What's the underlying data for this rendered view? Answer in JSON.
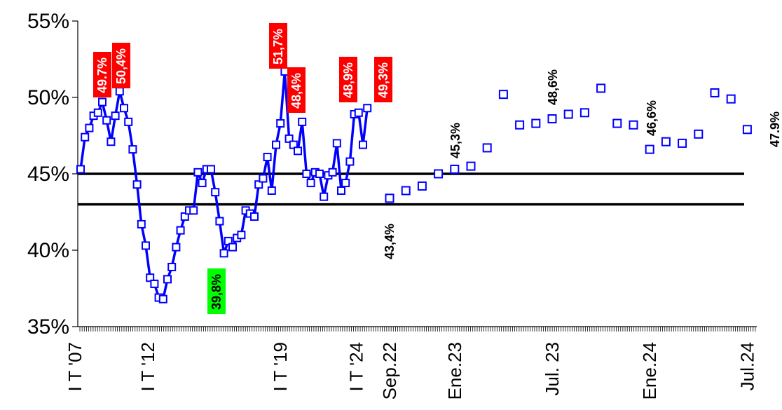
{
  "chart_data": {
    "type": "line",
    "y_ticks": [
      "35%",
      "40%",
      "45%",
      "50%",
      "55%"
    ],
    "ylim": [
      35,
      55
    ],
    "reference_lines": [
      45,
      43
    ],
    "x_tick_labels": [
      "I T '07",
      "I T '12",
      "I T '19",
      "I T '24",
      "Sep.22",
      "Ene.23",
      "Jul. 23",
      "Ene.24",
      "Jul.24"
    ],
    "grid": false,
    "series": [
      {
        "style": "line-with-square-markers",
        "color": "#0000ff",
        "values": [
          45.3,
          47.4,
          48.0,
          48.8,
          49.0,
          49.7,
          48.5,
          47.1,
          48.8,
          50.4,
          49.3,
          48.4,
          46.6,
          44.3,
          41.7,
          40.3,
          38.2,
          37.8,
          36.9,
          36.8,
          38.1,
          38.9,
          40.2,
          41.3,
          42.2,
          42.6,
          42.6,
          45.1,
          44.4,
          45.3,
          45.3,
          43.8,
          41.9,
          39.8,
          40.6,
          40.2,
          40.8,
          41.0,
          42.6,
          42.4,
          42.2,
          44.3,
          44.7,
          46.1,
          43.9,
          46.9,
          48.3,
          51.7,
          47.3,
          46.9,
          46.5,
          48.4,
          45.0,
          44.4,
          45.1,
          45.0,
          43.5,
          44.9,
          45.1,
          47.0,
          43.9,
          44.4,
          45.8,
          48.9,
          49.0,
          46.9,
          49.3
        ]
      },
      {
        "style": "square-markers",
        "color": "#0000ff",
        "values": [
          43.4,
          43.9,
          44.2,
          45.0,
          45.3,
          45.5,
          46.7,
          50.2,
          48.2,
          48.3,
          48.6,
          48.9,
          49.0,
          50.6,
          48.3,
          48.2,
          46.6,
          47.1,
          47.0,
          47.6,
          50.3,
          49.9,
          47.9
        ]
      }
    ],
    "annotations": [
      {
        "text": "49.7%",
        "style": "red-box"
      },
      {
        "text": "50,4%",
        "style": "red-box"
      },
      {
        "text": "51,7%",
        "style": "red-box"
      },
      {
        "text": "48,4%",
        "style": "red-box"
      },
      {
        "text": "48,9%",
        "style": "red-box"
      },
      {
        "text": "49,3%",
        "style": "red-box"
      },
      {
        "text": "39,8%",
        "style": "green-box"
      },
      {
        "text": "43,4%",
        "style": "plain"
      },
      {
        "text": "45,3%",
        "style": "plain"
      },
      {
        "text": "48,6%",
        "style": "plain"
      },
      {
        "text": "46,6%",
        "style": "plain"
      },
      {
        "text": "47.9%",
        "style": "plain"
      }
    ]
  }
}
